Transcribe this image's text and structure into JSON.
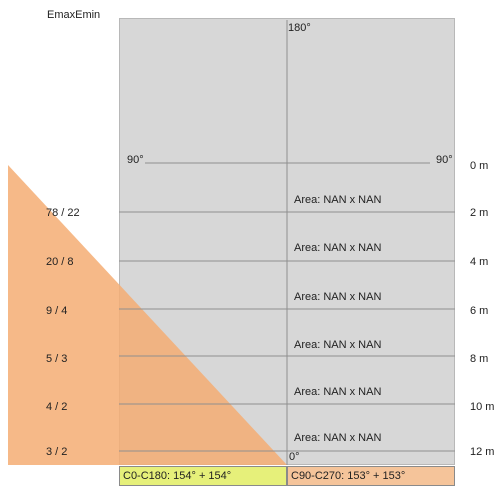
{
  "header_label": "EmaxEmin",
  "angles": {
    "top": "180°",
    "left": "90°",
    "right": "90°",
    "bottom": "0°"
  },
  "rows": [
    {
      "distance": "0 m",
      "ratio": "",
      "area": ""
    },
    {
      "distance": "2 m",
      "ratio": "78 / 22",
      "area": "Area: NAN  x  NAN"
    },
    {
      "distance": "4 m",
      "ratio": "20 / 8",
      "area": "Area: NAN  x  NAN"
    },
    {
      "distance": "6 m",
      "ratio": "9 / 4",
      "area": "Area: NAN  x  NAN"
    },
    {
      "distance": "8 m",
      "ratio": "5 / 3",
      "area": "Area: NAN  x  NAN"
    },
    {
      "distance": "10 m",
      "ratio": "4 / 2",
      "area": "Area: NAN  x  NAN"
    },
    {
      "distance": "12 m",
      "ratio": "3 / 2",
      "area": "Area: NAN  x  NAN"
    }
  ],
  "footer": {
    "left": "C0-C180: 154° + 154°",
    "right": "C90-C270: 153° + 153°"
  },
  "colors": {
    "cone": "#f5ad73",
    "panel": "#d7d7d7",
    "grid_line": "#8f8f8f",
    "footer_left": "#e6f07a",
    "footer_right": "#f5c49a"
  }
}
